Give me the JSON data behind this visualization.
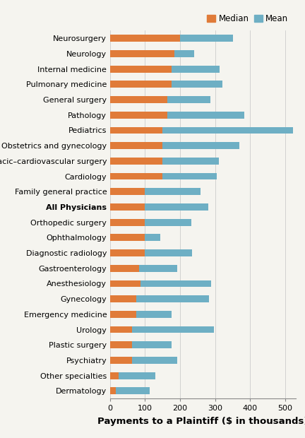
{
  "categories": [
    "Neurosurgery",
    "Neurology",
    "Internal medicine",
    "Pulmonary medicine",
    "General surgery",
    "Pathology",
    "Pediatrics",
    "Obstetrics and gynecology",
    "Thoracic–cardiovascular surgery",
    "Cardiology",
    "Family general practice",
    "All Physicians",
    "Orthopedic surgery",
    "Ophthalmology",
    "Diagnostic radiology",
    "Gastroenterology",
    "Anesthesiology",
    "Gynecology",
    "Emergency medicine",
    "Urology",
    "Plastic surgery",
    "Psychiatry",
    "Other specialties",
    "Dermatology"
  ],
  "median": [
    200,
    183,
    175,
    175,
    163,
    163,
    150,
    150,
    150,
    150,
    100,
    100,
    100,
    100,
    100,
    83,
    88,
    75,
    75,
    63,
    63,
    63,
    25,
    17
  ],
  "mean": [
    350,
    240,
    313,
    320,
    287,
    383,
    522,
    370,
    310,
    305,
    258,
    280,
    233,
    143,
    235,
    192,
    288,
    283,
    175,
    296,
    175,
    192,
    130,
    113
  ],
  "median_color": "#e07b39",
  "mean_color": "#6eafc4",
  "background_color": "#f5f4ef",
  "xlabel": "Payments to a Plaintiff ($ in thousands)",
  "legend_labels": [
    "Median",
    "Mean"
  ],
  "xlim_max": 530,
  "xticks": [
    0,
    100,
    200,
    300,
    400,
    500
  ],
  "all_physicians_label": "All Physicians",
  "bar_height": 0.45,
  "tick_fontsize": 8.0,
  "label_fontsize": 9.5,
  "legend_fontsize": 8.5
}
